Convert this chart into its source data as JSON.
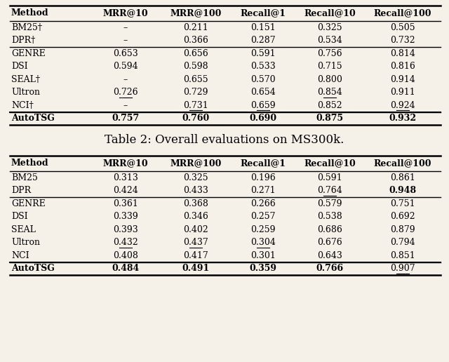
{
  "table2_title": "Table 2: Overall evaluations on MS300k.",
  "columns": [
    "Method",
    "MRR@10",
    "MRR@100",
    "Recall@1",
    "Recall@10",
    "Recall@100"
  ],
  "table1_rows": [
    [
      "BM25†",
      "–",
      "0.211",
      "0.151",
      "0.325",
      "0.505"
    ],
    [
      "DPR†",
      "–",
      "0.366",
      "0.287",
      "0.534",
      "0.732"
    ],
    [
      "GENRE",
      "0.653",
      "0.656",
      "0.591",
      "0.756",
      "0.814"
    ],
    [
      "DSI",
      "0.594",
      "0.598",
      "0.533",
      "0.715",
      "0.816"
    ],
    [
      "SEAL†",
      "–",
      "0.655",
      "0.570",
      "0.800",
      "0.914"
    ],
    [
      "Ultron",
      "0.726",
      "0.729",
      "0.654",
      "0.854",
      "0.911"
    ],
    [
      "NCI†",
      "–",
      "0.731",
      "0.659",
      "0.852",
      "0.924"
    ],
    [
      "AutoTSG",
      "0.757",
      "0.760",
      "0.690",
      "0.875",
      "0.932"
    ]
  ],
  "table1_bold": [
    [
      false,
      false,
      false,
      false,
      false,
      false
    ],
    [
      false,
      false,
      false,
      false,
      false,
      false
    ],
    [
      false,
      false,
      false,
      false,
      false,
      false
    ],
    [
      false,
      false,
      false,
      false,
      false,
      false
    ],
    [
      false,
      false,
      false,
      false,
      false,
      false
    ],
    [
      false,
      false,
      false,
      false,
      false,
      false
    ],
    [
      false,
      false,
      false,
      false,
      false,
      false
    ],
    [
      true,
      true,
      true,
      true,
      true,
      true
    ]
  ],
  "table1_underline": [
    [
      false,
      false,
      false,
      false,
      false,
      false
    ],
    [
      false,
      false,
      false,
      false,
      false,
      false
    ],
    [
      false,
      false,
      false,
      false,
      false,
      false
    ],
    [
      false,
      false,
      false,
      false,
      false,
      false
    ],
    [
      false,
      false,
      false,
      false,
      false,
      false
    ],
    [
      false,
      true,
      false,
      false,
      true,
      false
    ],
    [
      false,
      false,
      true,
      true,
      false,
      true
    ],
    [
      false,
      false,
      false,
      false,
      false,
      false
    ]
  ],
  "table1_group_seps": [
    2,
    7
  ],
  "table2_rows": [
    [
      "BM25",
      "0.313",
      "0.325",
      "0.196",
      "0.591",
      "0.861"
    ],
    [
      "DPR",
      "0.424",
      "0.433",
      "0.271",
      "0.764",
      "0.948"
    ],
    [
      "GENRE",
      "0.361",
      "0.368",
      "0.266",
      "0.579",
      "0.751"
    ],
    [
      "DSI",
      "0.339",
      "0.346",
      "0.257",
      "0.538",
      "0.692"
    ],
    [
      "SEAL",
      "0.393",
      "0.402",
      "0.259",
      "0.686",
      "0.879"
    ],
    [
      "Ultron",
      "0.432",
      "0.437",
      "0.304",
      "0.676",
      "0.794"
    ],
    [
      "NCI",
      "0.408",
      "0.417",
      "0.301",
      "0.643",
      "0.851"
    ],
    [
      "AutoTSG",
      "0.484",
      "0.491",
      "0.359",
      "0.766",
      "0.907"
    ]
  ],
  "table2_bold": [
    [
      false,
      false,
      false,
      false,
      false,
      false
    ],
    [
      false,
      false,
      false,
      false,
      false,
      true
    ],
    [
      false,
      false,
      false,
      false,
      false,
      false
    ],
    [
      false,
      false,
      false,
      false,
      false,
      false
    ],
    [
      false,
      false,
      false,
      false,
      false,
      false
    ],
    [
      false,
      false,
      false,
      false,
      false,
      false
    ],
    [
      false,
      false,
      false,
      false,
      false,
      false
    ],
    [
      true,
      true,
      true,
      true,
      true,
      false
    ]
  ],
  "table2_underline": [
    [
      false,
      false,
      false,
      false,
      false,
      false
    ],
    [
      false,
      false,
      false,
      false,
      true,
      false
    ],
    [
      false,
      false,
      false,
      false,
      false,
      false
    ],
    [
      false,
      false,
      false,
      false,
      false,
      false
    ],
    [
      false,
      false,
      false,
      false,
      false,
      false
    ],
    [
      false,
      true,
      true,
      true,
      false,
      false
    ],
    [
      false,
      false,
      false,
      false,
      false,
      false
    ],
    [
      false,
      false,
      false,
      false,
      false,
      true
    ]
  ],
  "table2_group_seps": [
    2,
    7
  ],
  "bg_color": "#f5f0e8",
  "font_size": 9.0
}
